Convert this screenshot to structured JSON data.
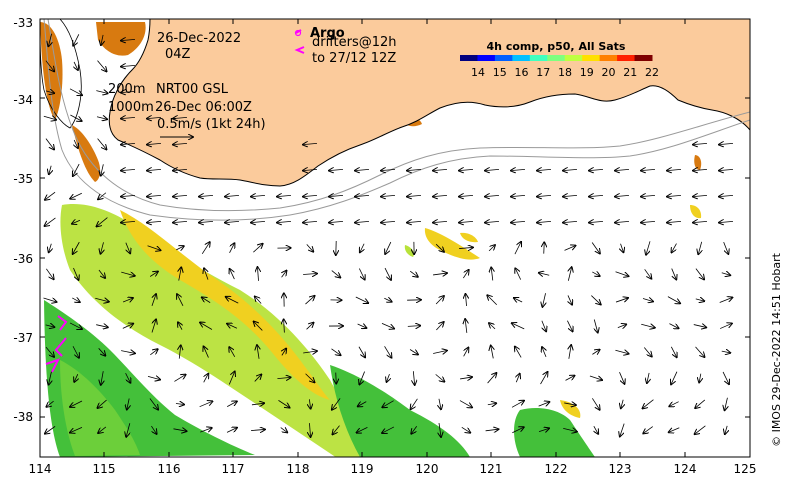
{
  "header": {
    "date": "26-Dec-2022",
    "time": "04Z",
    "argo_label": "Argo",
    "drifters_line1": "drifters@12h",
    "drifters_line2": "to 27/12 12Z"
  },
  "legend": {
    "isobath_200": "200m",
    "isobath_1000": "1000m",
    "current_source": "NRT00 GSL",
    "current_time": "26-Dec 06:00Z",
    "scale_vector": "0.5m/s (1kt 24h)"
  },
  "colorbar": {
    "title": "4h comp, p50, All Sats",
    "ticks": [
      "14",
      "15",
      "16",
      "17",
      "18",
      "19",
      "20",
      "21",
      "22"
    ],
    "colors": [
      "#00007f",
      "#0000ff",
      "#0060ff",
      "#00c0ff",
      "#40ffbf",
      "#7fff7f",
      "#bfff40",
      "#ffe000",
      "#ff8000",
      "#ff2000",
      "#7f0000"
    ]
  },
  "axes": {
    "x_ticks": [
      "114",
      "115",
      "116",
      "117",
      "118",
      "119",
      "120",
      "121",
      "122",
      "123",
      "124",
      "125"
    ],
    "y_ticks": [
      "-33",
      "-34",
      "-35",
      "-36",
      "-37",
      "-38"
    ]
  },
  "credit": "© IMOS 29-Dec-2022 14:51 Hobart",
  "colors": {
    "land": "#fbcb9c",
    "coast": "#000000",
    "isobath": "#9a9a9a",
    "drifter": "#ff00ff",
    "sst_green": "#44c03a",
    "sst_lime": "#b8e23a",
    "sst_yellow": "#f0d020",
    "sst_orange": "#d87a10"
  }
}
